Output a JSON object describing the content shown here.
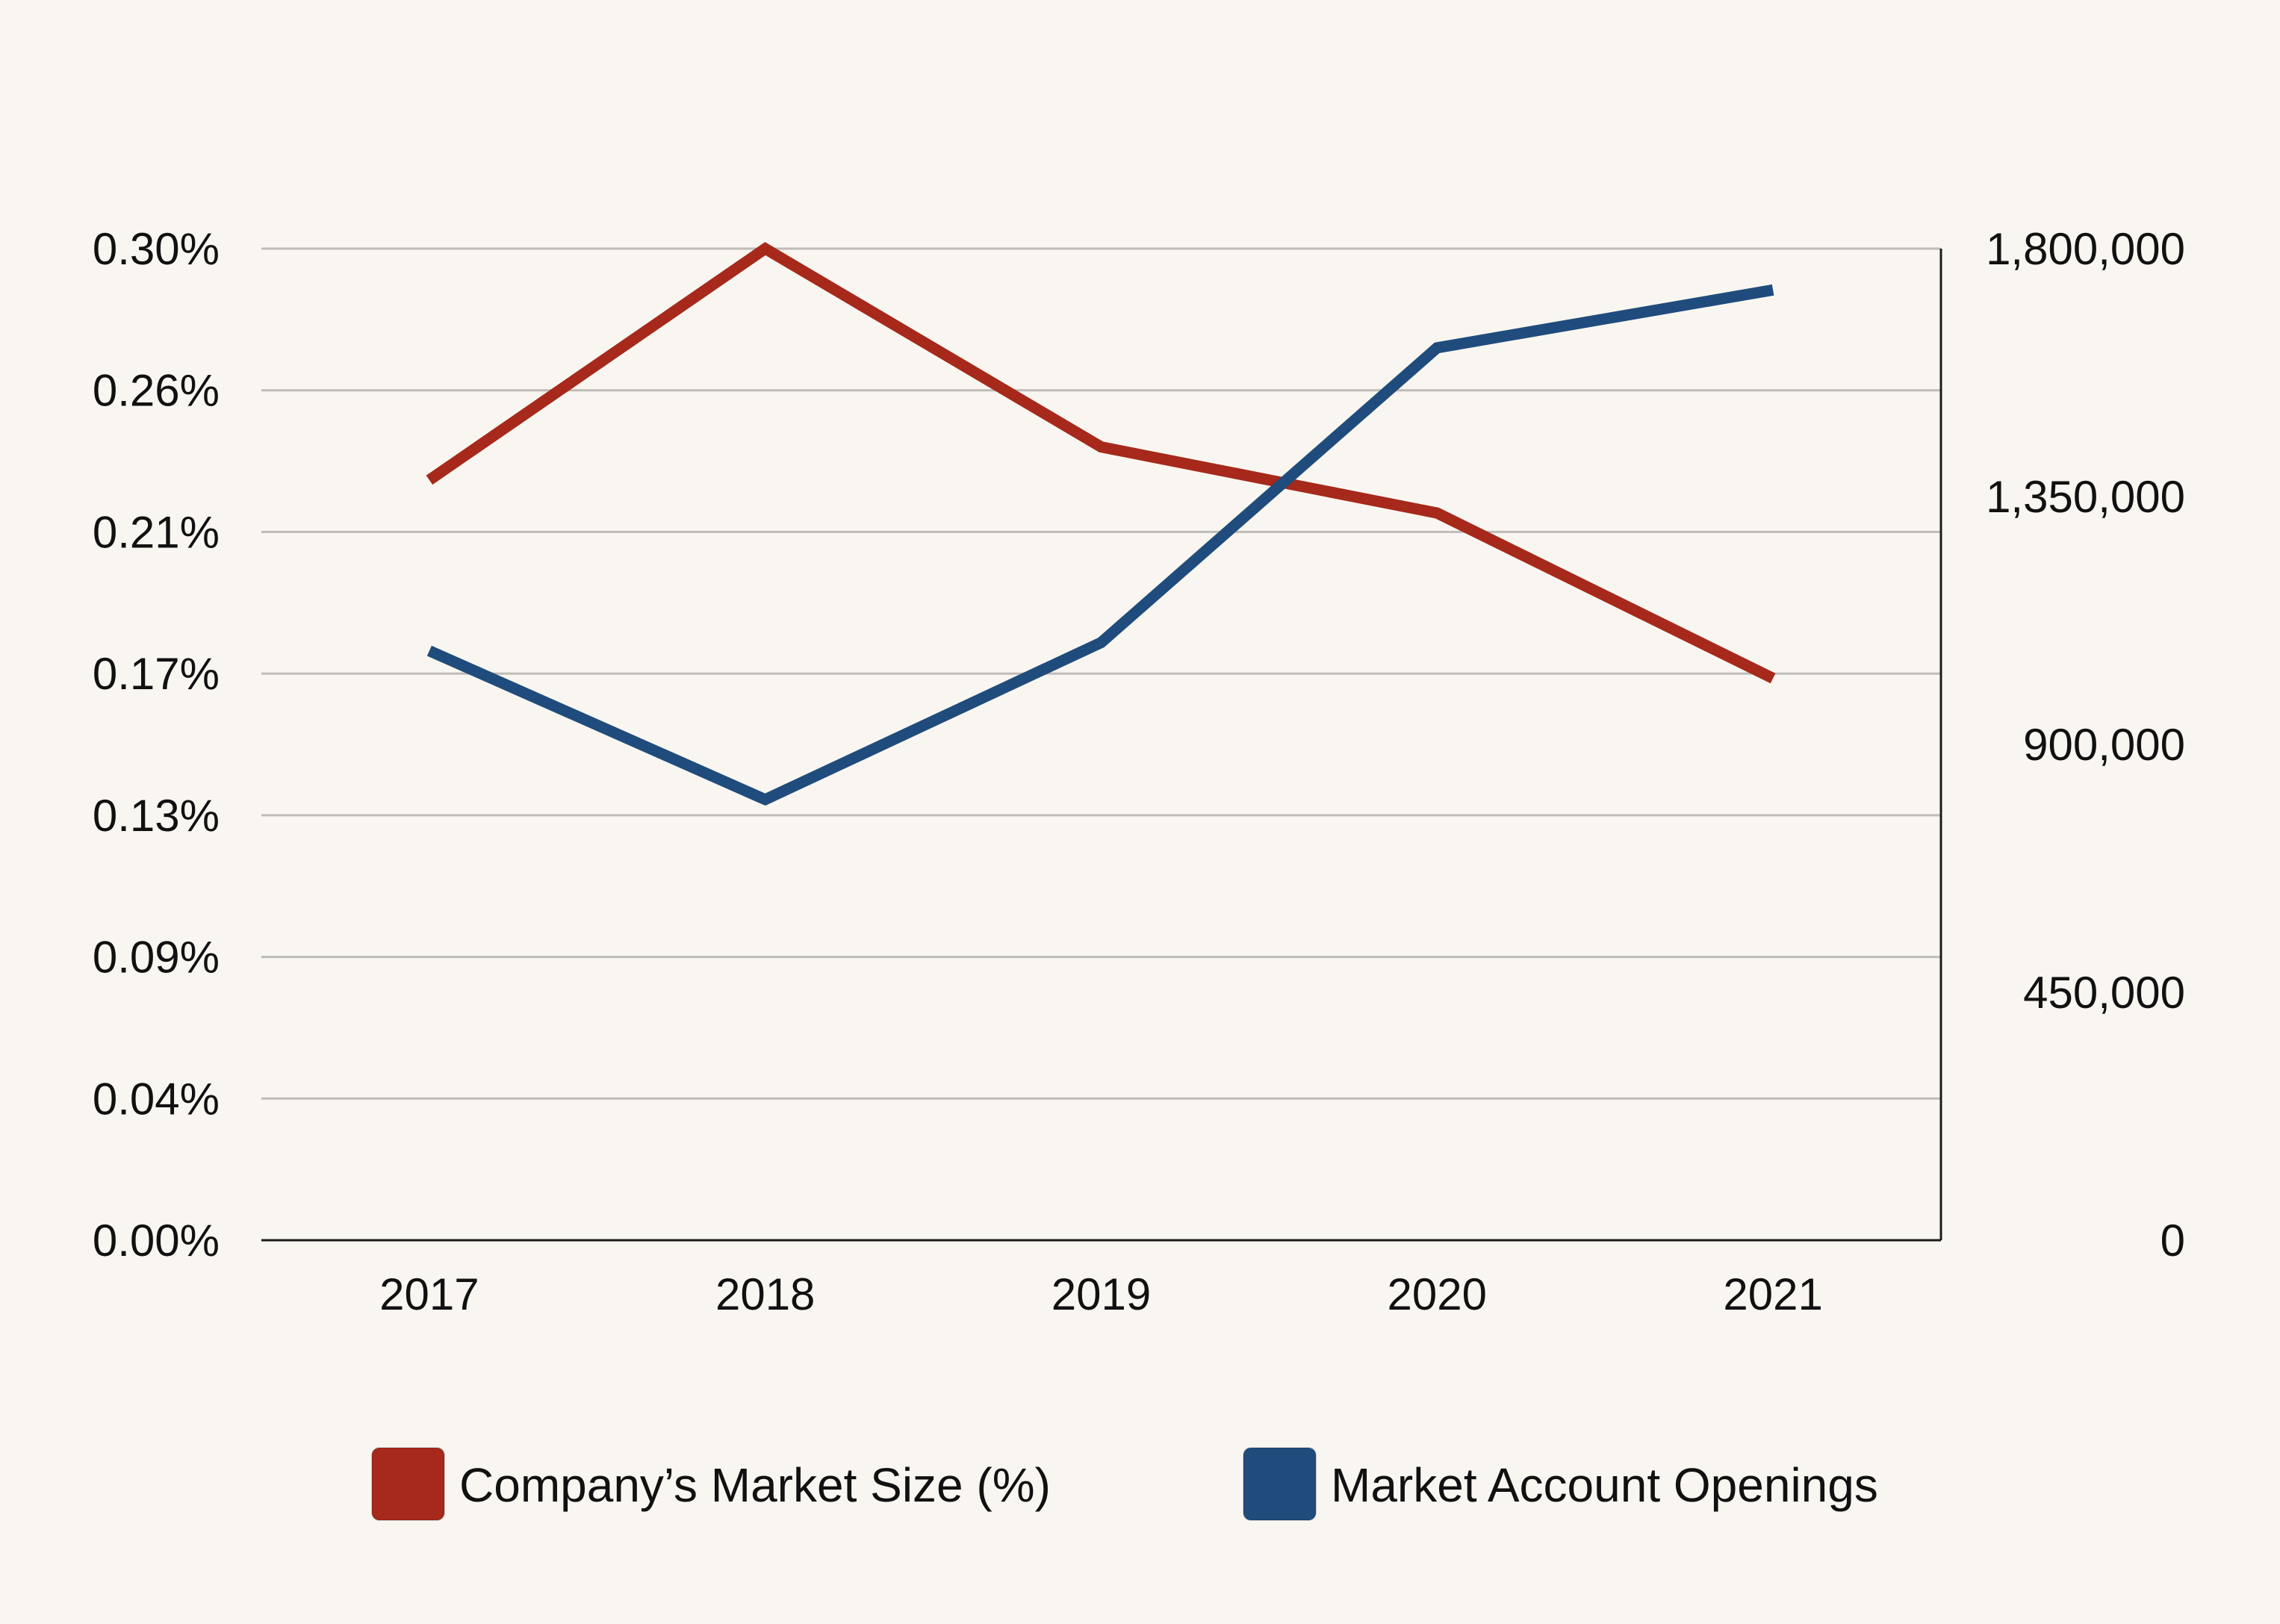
{
  "colors": {
    "background": "#f9f6f1",
    "gridline": "#bfbcb7",
    "axis": "#1c1c1c",
    "text": "#111111"
  },
  "chart_data": {
    "type": "line",
    "categories": [
      "2017",
      "2018",
      "2019",
      "2020",
      "2021"
    ],
    "series": [
      {
        "name": "Company’s Market Size (%)",
        "axis": "left",
        "color": "#a6291b",
        "values": [
          0.23,
          0.3,
          0.24,
          0.22,
          0.17
        ]
      },
      {
        "name": "Market Account Openings",
        "axis": "right",
        "color": "#1f4c7c",
        "values": [
          1070000,
          800000,
          1085000,
          1620000,
          1725000
        ]
      }
    ],
    "y_left": {
      "range": [
        0,
        0.3
      ],
      "tick_labels": [
        "0.00%",
        "0.04%",
        "0.09%",
        "0.13%",
        "0.17%",
        "0.21%",
        "0.26%",
        "0.30%"
      ]
    },
    "y_right": {
      "range": [
        0,
        1800000
      ],
      "tick_labels": [
        "0",
        "450,000",
        "900,000",
        "1,350,000",
        "1,800,000"
      ]
    },
    "grid": true,
    "legend_position": "bottom"
  }
}
